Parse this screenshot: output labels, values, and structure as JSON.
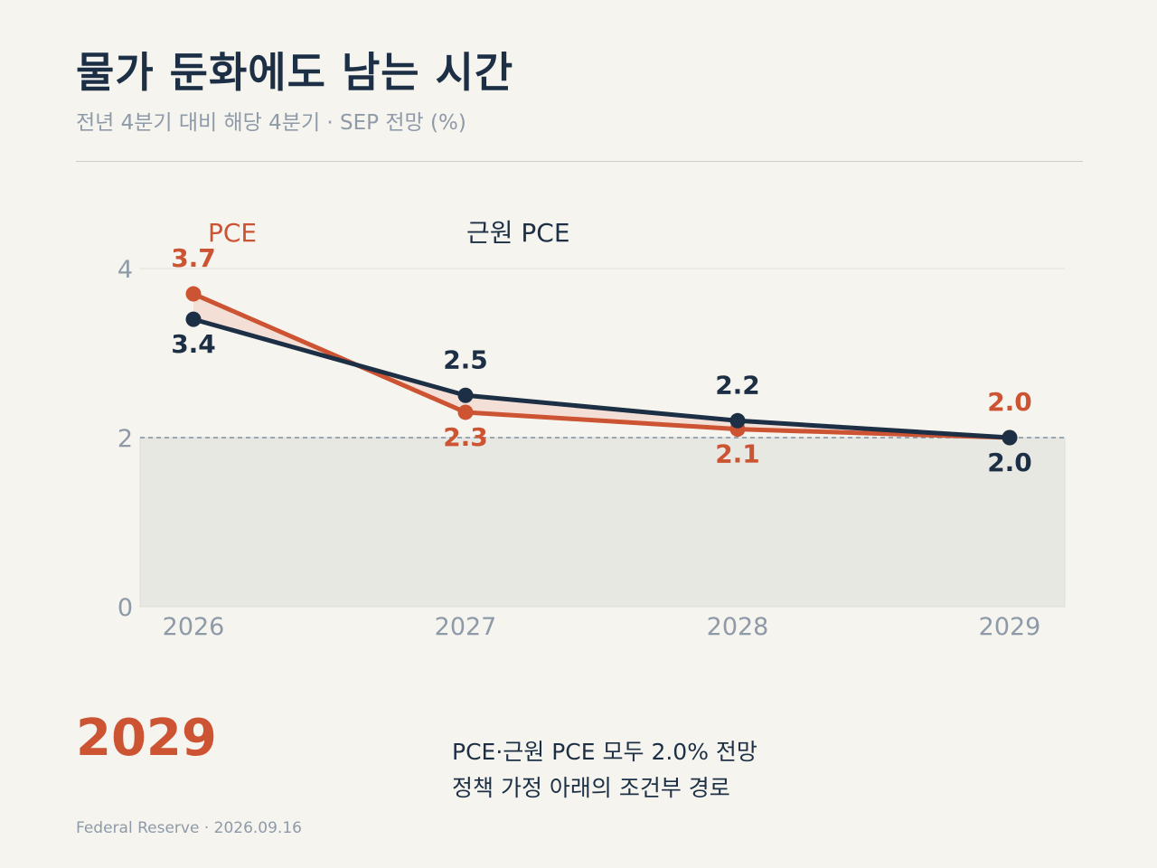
{
  "title": "물가 둔화에도 남는 시간",
  "subtitle": "전년 4분기 대비 해당 4분기 · SEP 전망 (%)",
  "colors": {
    "pce": "#cc5433",
    "core_pce": "#1c2f45",
    "axis_text": "#8e9aa8",
    "below_target_band": "#e8e8e3",
    "target_line": "#7f8ea1",
    "gap_fill": "#f4ddd4",
    "background": "#f6f4ef"
  },
  "chart_data": {
    "type": "line",
    "x": [
      "2026",
      "2027",
      "2028",
      "2029"
    ],
    "series": [
      {
        "name": "PCE",
        "values": [
          3.7,
          2.3,
          2.1,
          2.0
        ],
        "labels": [
          "3.7",
          "2.3",
          "2.1",
          "2.0"
        ]
      },
      {
        "name": "근원 PCE",
        "values": [
          3.4,
          2.5,
          2.2,
          2.0
        ],
        "labels": [
          "3.4",
          "2.5",
          "2.2",
          "2.0"
        ]
      }
    ],
    "ylim": [
      0,
      4
    ],
    "yticks": [
      "0",
      "2",
      "4"
    ],
    "target_line": 2,
    "grid": true,
    "legend": "top-left, inline labels",
    "shaded_band": [
      0,
      2
    ]
  },
  "highlight": {
    "year": "2029",
    "line1": "PCE·근원 PCE 모두 2.0% 전망",
    "line2": "정책 가정 아래의 조건부 경로"
  },
  "footer": "Federal Reserve · 2026.09.16"
}
